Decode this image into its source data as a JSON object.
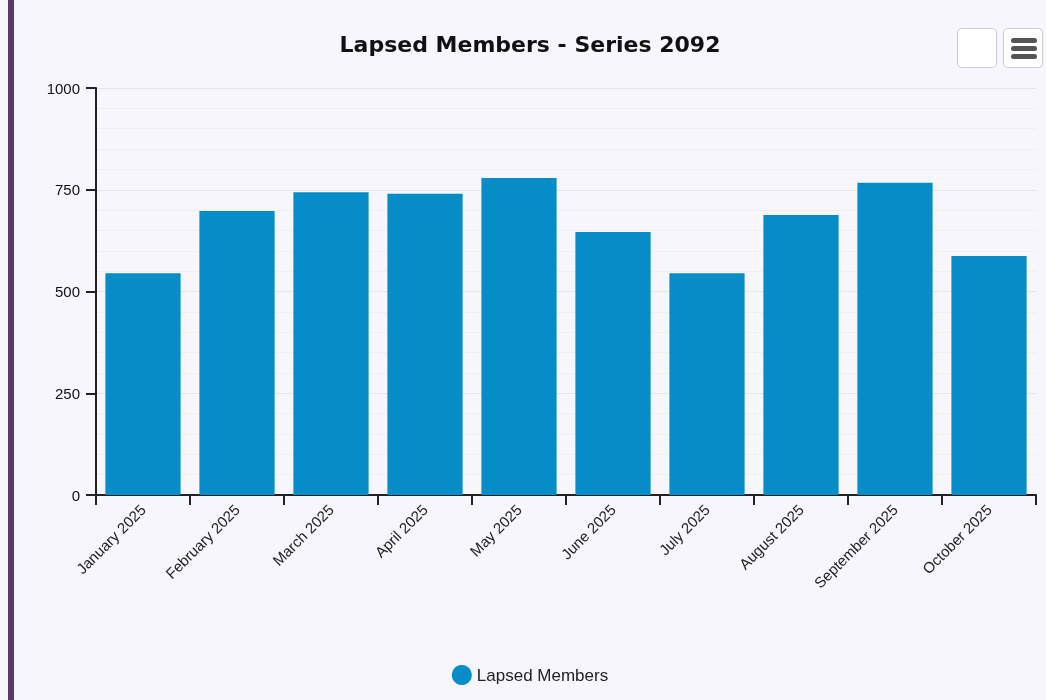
{
  "chart_data": {
    "type": "bar",
    "title": "Lapsed Members - Series 2092",
    "categories": [
      "January 2025",
      "February 2025",
      "March 2025",
      "April 2025",
      "May 2025",
      "June 2025",
      "July 2025",
      "August 2025",
      "September 2025",
      "October 2025"
    ],
    "series": [
      {
        "name": "Lapsed Members",
        "color": "#068cc6",
        "values": [
          545,
          698,
          744,
          740,
          779,
          646,
          545,
          688,
          767,
          587
        ]
      }
    ],
    "ylim": [
      0,
      1000
    ],
    "yticks": [
      0,
      250,
      500,
      750,
      1000
    ],
    "grid": "y",
    "legend": "bottom"
  }
}
